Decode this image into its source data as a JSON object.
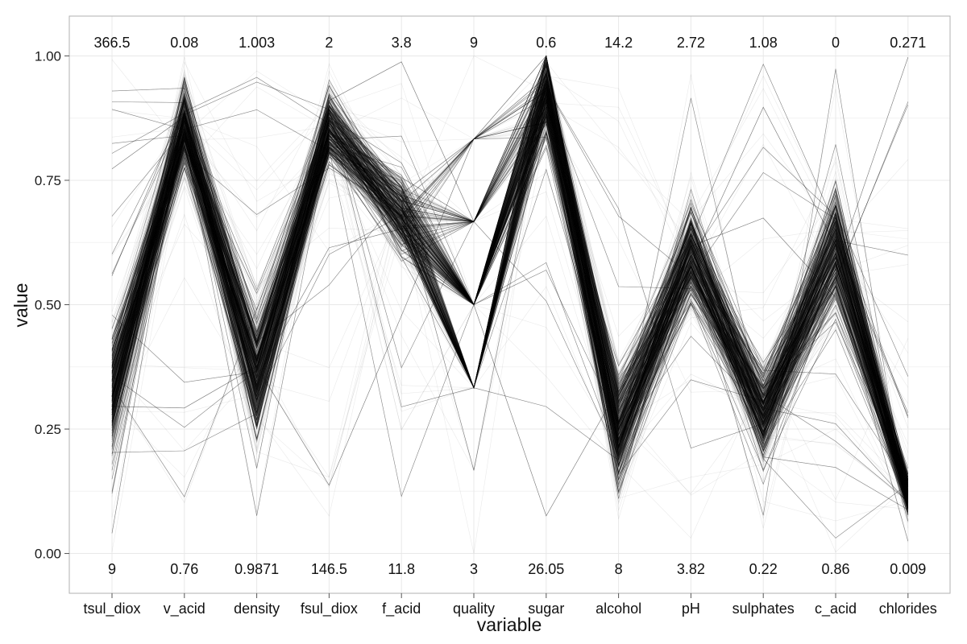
{
  "chart_data": {
    "type": "line",
    "title": "",
    "xlabel": "variable",
    "ylabel": "value",
    "ylim": [
      -0.08,
      1.08
    ],
    "y_ticks": [
      0.0,
      0.25,
      0.5,
      0.75,
      1.0
    ],
    "y_tick_labels": [
      "0.00",
      "0.25",
      "0.50",
      "0.75",
      "1.00"
    ],
    "grid": true,
    "legend": "none",
    "categories": [
      "tsul_diox",
      "v_acid",
      "density",
      "fsul_diox",
      "f_acid",
      "quality",
      "sugar",
      "alcohol",
      "pH",
      "sulphates",
      "c_acid",
      "chlorides"
    ],
    "top_labels": [
      "366.5",
      "0.08",
      "1.003",
      "2",
      "3.8",
      "9",
      "0.6",
      "14.2",
      "2.72",
      "1.08",
      "0",
      "0.271"
    ],
    "bottom_labels": [
      "9",
      "0.76",
      "0.9871",
      "146.5",
      "11.8",
      "3",
      "26.05",
      "8",
      "3.82",
      "0.22",
      "0.86",
      "0.009"
    ],
    "quality_levels": [
      0.0,
      0.167,
      0.333,
      0.5,
      0.667,
      0.833,
      1.0
    ],
    "series": [
      {
        "values": [
          0.33,
          0.88,
          0.35,
          0.92,
          0.68,
          0.5,
          0.95,
          0.22,
          0.62,
          0.28,
          0.62,
          0.12
        ]
      },
      {
        "values": [
          0.28,
          0.82,
          0.3,
          0.88,
          0.72,
          0.333,
          0.97,
          0.18,
          0.58,
          0.22,
          0.58,
          0.1
        ]
      },
      {
        "values": [
          0.4,
          0.9,
          0.42,
          0.86,
          0.62,
          0.667,
          0.92,
          0.35,
          0.66,
          0.32,
          0.68,
          0.14
        ]
      }
    ],
    "line_count": 1600,
    "line_color": "#1a1a1a",
    "background": "#ffffff",
    "grid_color": "#e8e8e8"
  }
}
